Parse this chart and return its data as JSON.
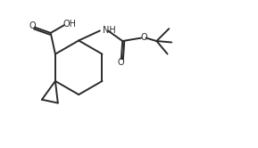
{
  "bg_color": "#ffffff",
  "line_color": "#2a2a2a",
  "line_width": 1.4,
  "font_size": 7.0,
  "fig_width": 2.89,
  "fig_height": 1.66,
  "dpi": 100,
  "xlim": [
    0.0,
    9.5
  ],
  "ylim": [
    -1.5,
    4.2
  ]
}
